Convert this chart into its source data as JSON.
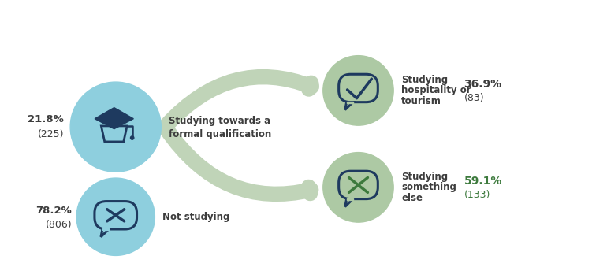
{
  "bg_color": "#ffffff",
  "node1_pct": "21.8%",
  "node1_n": "(225)",
  "node1_label1": "Studying towards a",
  "node1_label2": "formal qualification",
  "node1_circle_color": "#8ecfde",
  "node2_pct": "78.2%",
  "node2_n": "(806)",
  "node2_label": "Not studying",
  "node2_circle_color": "#8ecfde",
  "leaf1_pct": "36.9%",
  "leaf1_n": "(83)",
  "leaf1_label1": "Studying",
  "leaf1_label2": "hospitality or",
  "leaf1_label3": "tourism",
  "leaf1_circle_color": "#adc9a4",
  "leaf2_pct": "59.1%",
  "leaf2_n": "(133)",
  "leaf2_label1": "Studying",
  "leaf2_label2": "something",
  "leaf2_label3": "else",
  "leaf2_circle_color": "#adc9a4",
  "pct_color_dark": "#3d3d3d",
  "pct_color_green": "#3d7a3d",
  "icon_dark_blue": "#1e3a5f",
  "icon_mid_blue": "#3a6080",
  "arrow_color": "#c0d4b8",
  "label_color": "#3d3d3d",
  "c1x": 1.45,
  "c1y": 1.78,
  "c2x": 1.45,
  "c2y": 0.62,
  "l1x": 4.55,
  "l1y": 2.25,
  "l2x": 4.55,
  "l2y": 1.0
}
